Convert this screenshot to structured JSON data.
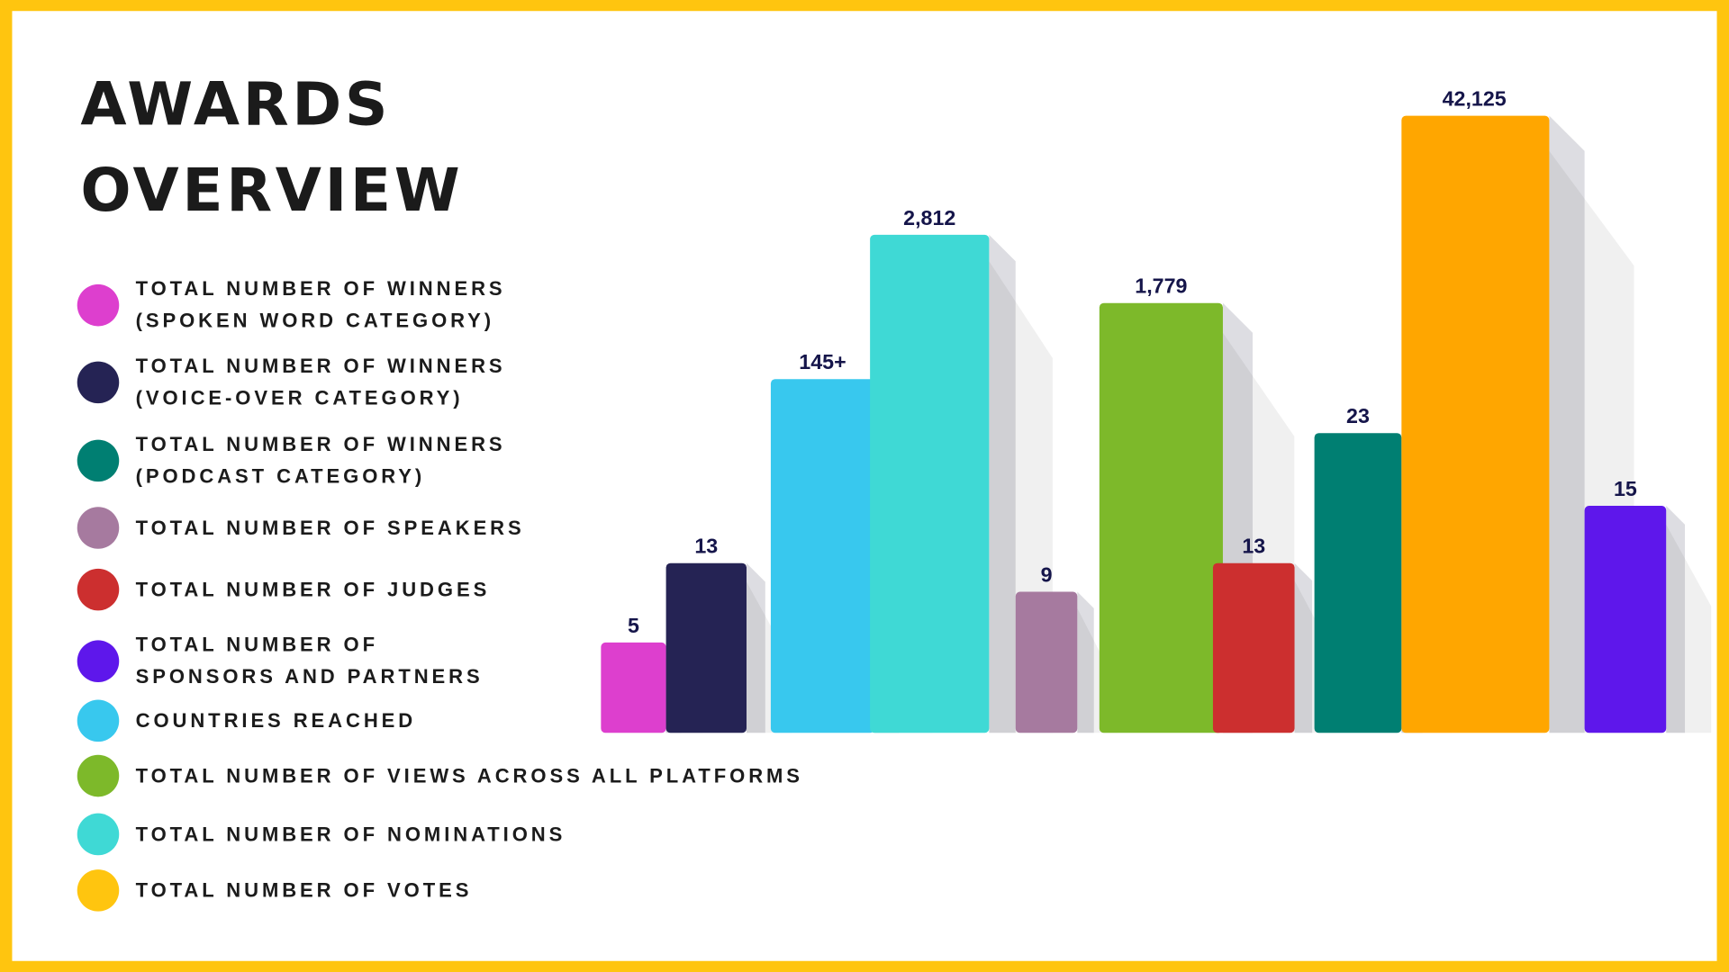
{
  "title_line1": "AWARDS",
  "title_line2": "OVERVIEW",
  "colors": {
    "border": "#FFC50F",
    "side": "#DDDDE2",
    "label": "#15154A"
  },
  "legend": [
    {
      "label": "TOTAL NUMBER OF WINNERS\n(SPOKEN WORD CATEGORY)",
      "color": "#DD3FCE"
    },
    {
      "label": "TOTAL NUMBER OF WINNERS\n(VOICE-OVER CATEGORY)",
      "color": "#252354"
    },
    {
      "label": "TOTAL NUMBER OF WINNERS\n(PODCAST CATEGORY)",
      "color": "#007F72"
    },
    {
      "label": "TOTAL NUMBER OF SPEAKERS",
      "color": "#A67A9F"
    },
    {
      "label": "TOTAL NUMBER OF JUDGES",
      "color": "#CC2F2F"
    },
    {
      "label": "TOTAL NUMBER OF\nSPONSORS AND PARTNERS",
      "color": "#5E17EB"
    },
    {
      "label": "COUNTRIES REACHED",
      "color": "#38C8EE"
    },
    {
      "label": "TOTAL NUMBER OF VIEWS ACROSS ALL PLATFORMS",
      "color": "#7DB92A"
    },
    {
      "label": "TOTAL NUMBER OF NOMINATIONS",
      "color": "#3FD9D5"
    },
    {
      "label": "TOTAL NUMBER OF VOTES",
      "color": "#FFC50F"
    }
  ],
  "chart_data": {
    "type": "bar",
    "title": "AWARDS OVERVIEW",
    "categories": [
      "Winners (Spoken Word)",
      "Winners (Voice-Over)",
      "Countries Reached",
      "Nominations",
      "Speakers",
      "Views Across All Platforms",
      "Judges",
      "Winners (Podcast)",
      "Votes",
      "Sponsors and Partners"
    ],
    "values": [
      5,
      13,
      145,
      2812,
      9,
      1779,
      13,
      23,
      42125,
      15
    ],
    "labels": [
      "5",
      "13",
      "145+",
      "2,812",
      "9",
      "1,779",
      "13",
      "23",
      "42,125",
      "15"
    ],
    "colors": [
      "#DD3FCE",
      "#252354",
      "#38C8EE",
      "#3FD9D5",
      "#A67A9F",
      "#7DB92A",
      "#CC2F2F",
      "#007F72",
      "#FFA600",
      "#5E17EB"
    ]
  }
}
